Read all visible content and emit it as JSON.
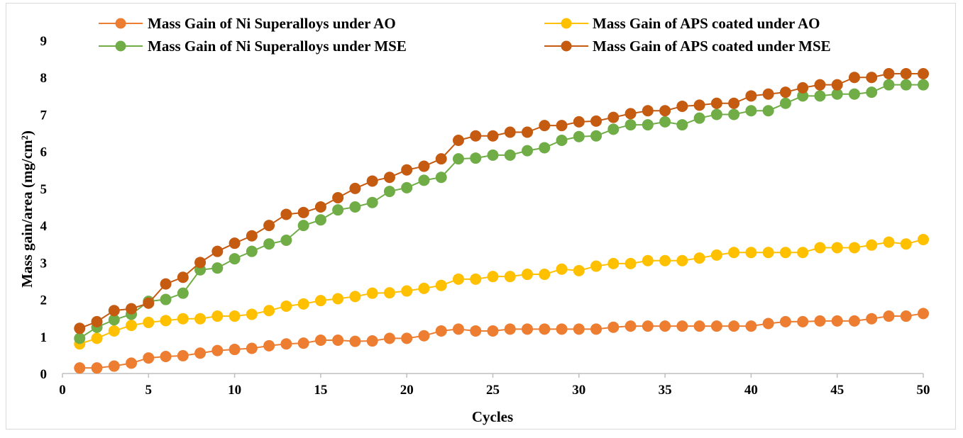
{
  "chart_data": {
    "type": "line",
    "title": "",
    "xlabel": "Cycles",
    "ylabel": "Mass gain/area (mg/cm²)",
    "xlim": [
      0,
      50
    ],
    "ylim": [
      0,
      9
    ],
    "xticks": [
      0,
      5,
      10,
      15,
      20,
      25,
      30,
      35,
      40,
      45,
      50
    ],
    "yticks": [
      0,
      1,
      2,
      3,
      4,
      5,
      6,
      7,
      8,
      9
    ],
    "grid": false,
    "legend_position": "top",
    "x": [
      1,
      2,
      3,
      4,
      5,
      6,
      7,
      8,
      9,
      10,
      11,
      12,
      13,
      14,
      15,
      16,
      17,
      18,
      19,
      20,
      21,
      22,
      23,
      24,
      25,
      26,
      27,
      28,
      29,
      30,
      31,
      32,
      33,
      34,
      35,
      36,
      37,
      38,
      39,
      40,
      41,
      42,
      43,
      44,
      45,
      46,
      47,
      48,
      49,
      50
    ],
    "series": [
      {
        "name": "Mass Gain of Ni Superalloys under AO",
        "color": "#ED7D31",
        "values": [
          0.15,
          0.15,
          0.2,
          0.28,
          0.42,
          0.46,
          0.48,
          0.55,
          0.62,
          0.65,
          0.68,
          0.75,
          0.8,
          0.82,
          0.9,
          0.9,
          0.87,
          0.88,
          0.95,
          0.95,
          1.02,
          1.15,
          1.2,
          1.15,
          1.15,
          1.2,
          1.2,
          1.2,
          1.2,
          1.2,
          1.2,
          1.25,
          1.28,
          1.28,
          1.28,
          1.28,
          1.28,
          1.28,
          1.28,
          1.28,
          1.35,
          1.4,
          1.4,
          1.42,
          1.42,
          1.42,
          1.48,
          1.55,
          1.55,
          1.62
        ]
      },
      {
        "name": "Mass Gain of APS coated under AO",
        "color": "#FFC000",
        "values": [
          0.8,
          0.95,
          1.15,
          1.3,
          1.38,
          1.43,
          1.48,
          1.48,
          1.55,
          1.55,
          1.6,
          1.7,
          1.82,
          1.88,
          1.97,
          2.02,
          2.08,
          2.17,
          2.18,
          2.23,
          2.3,
          2.38,
          2.55,
          2.55,
          2.62,
          2.62,
          2.68,
          2.68,
          2.82,
          2.78,
          2.9,
          2.97,
          2.97,
          3.05,
          3.05,
          3.05,
          3.12,
          3.2,
          3.27,
          3.27,
          3.27,
          3.27,
          3.27,
          3.4,
          3.4,
          3.4,
          3.47,
          3.55,
          3.5,
          3.62
        ]
      },
      {
        "name": "Mass Gain of Ni Superalloys under MSE",
        "color": "#70AD47",
        "values": [
          0.95,
          1.25,
          1.45,
          1.6,
          1.95,
          2.0,
          2.17,
          2.8,
          2.85,
          3.1,
          3.3,
          3.5,
          3.6,
          4.0,
          4.15,
          4.42,
          4.5,
          4.62,
          4.92,
          5.02,
          5.22,
          5.3,
          5.8,
          5.82,
          5.9,
          5.9,
          6.02,
          6.1,
          6.3,
          6.4,
          6.42,
          6.6,
          6.72,
          6.72,
          6.8,
          6.72,
          6.9,
          7.0,
          7.0,
          7.1,
          7.1,
          7.3,
          7.5,
          7.5,
          7.55,
          7.55,
          7.6,
          7.8,
          7.8,
          7.8
        ]
      },
      {
        "name": "Mass Gain of APS coated under MSE",
        "color": "#C55A11",
        "values": [
          1.22,
          1.4,
          1.7,
          1.75,
          1.9,
          2.42,
          2.6,
          3.0,
          3.3,
          3.52,
          3.72,
          4.0,
          4.3,
          4.35,
          4.5,
          4.75,
          5.0,
          5.2,
          5.3,
          5.5,
          5.6,
          5.8,
          6.3,
          6.42,
          6.42,
          6.52,
          6.52,
          6.7,
          6.7,
          6.8,
          6.82,
          6.92,
          7.02,
          7.1,
          7.1,
          7.22,
          7.25,
          7.3,
          7.3,
          7.5,
          7.55,
          7.6,
          7.72,
          7.8,
          7.8,
          8.0,
          8.0,
          8.1,
          8.1,
          8.1
        ]
      }
    ]
  }
}
